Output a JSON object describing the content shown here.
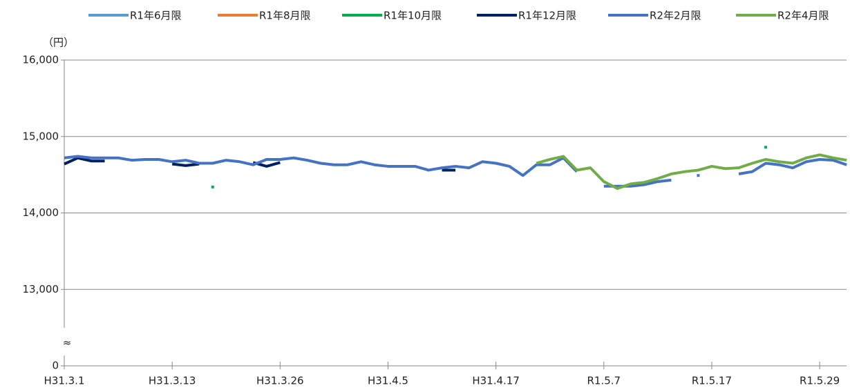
{
  "chart_data": {
    "type": "line",
    "y_label": "（円）",
    "axis_break_label": "≈",
    "categories": [
      "H31.3.1",
      null,
      null,
      null,
      null,
      null,
      null,
      null,
      "H31.3.13",
      null,
      null,
      null,
      null,
      null,
      null,
      null,
      "H31.3.26",
      null,
      null,
      null,
      null,
      null,
      null,
      null,
      "H31.4.5",
      null,
      null,
      null,
      null,
      null,
      null,
      null,
      "H31.4.17",
      null,
      null,
      null,
      null,
      null,
      null,
      null,
      "R1.5.7",
      null,
      null,
      null,
      null,
      null,
      null,
      null,
      "R1.5.17",
      null,
      null,
      null,
      null,
      null,
      null,
      null,
      "R1.5.29",
      null,
      null
    ],
    "ylim": [
      12000,
      16000
    ],
    "axis_break": true,
    "yticks": [
      {
        "value": 0,
        "label": "0"
      },
      {
        "value": 13000,
        "label": "13,000"
      },
      {
        "value": 14000,
        "label": "14,000"
      },
      {
        "value": 15000,
        "label": "15,000"
      },
      {
        "value": 16000,
        "label": "16,000"
      }
    ],
    "grid": true,
    "legend": "top",
    "series": [
      {
        "name": "R1年6月限",
        "color": "#5b9bd5",
        "values": [
          null,
          null,
          null,
          null,
          null,
          null,
          null,
          null,
          null,
          null,
          null,
          null,
          null,
          null,
          null,
          null,
          null,
          null,
          null,
          null,
          null,
          null,
          null,
          null,
          null,
          null,
          null,
          null,
          null,
          null,
          null,
          null,
          null,
          null,
          null,
          null,
          null,
          null,
          null,
          null,
          null,
          null,
          null,
          null,
          null,
          null,
          null,
          null,
          null,
          null,
          null,
          null,
          null,
          null,
          null,
          null,
          null,
          null,
          null
        ]
      },
      {
        "name": "R1年8月限",
        "color": "#ed7d31",
        "values": [
          null,
          null,
          null,
          null,
          null,
          null,
          null,
          null,
          null,
          null,
          null,
          null,
          null,
          null,
          null,
          null,
          null,
          null,
          null,
          null,
          null,
          null,
          null,
          null,
          null,
          null,
          null,
          null,
          null,
          null,
          null,
          null,
          null,
          null,
          null,
          null,
          null,
          null,
          null,
          null,
          null,
          null,
          null,
          null,
          null,
          null,
          null,
          null,
          null,
          null,
          null,
          null,
          null,
          null,
          null,
          null,
          null,
          null,
          null
        ]
      },
      {
        "name": "R1年10月限",
        "color": "#00b050",
        "values": [
          null,
          null,
          null,
          null,
          null,
          null,
          null,
          null,
          null,
          null,
          null,
          14340,
          null,
          null,
          null,
          null,
          null,
          null,
          null,
          null,
          null,
          null,
          null,
          null,
          null,
          null,
          null,
          null,
          null,
          null,
          null,
          null,
          null,
          null,
          null,
          null,
          null,
          null,
          null,
          null,
          null,
          null,
          null,
          null,
          null,
          null,
          null,
          null,
          null,
          null,
          null,
          null,
          14860,
          null,
          null,
          null,
          null,
          null,
          null
        ]
      },
      {
        "name": "R1年12月限",
        "color": "#002060",
        "values": [
          14640,
          14720,
          14680,
          14680,
          null,
          null,
          null,
          null,
          14640,
          14620,
          14640,
          null,
          null,
          null,
          14660,
          14610,
          14660,
          null,
          null,
          null,
          null,
          null,
          null,
          null,
          null,
          null,
          null,
          null,
          14560,
          14560,
          null,
          null,
          null,
          null,
          null,
          null,
          null,
          null,
          null,
          null,
          null,
          null,
          null,
          null,
          null,
          null,
          null,
          null,
          null,
          null,
          null,
          null,
          null,
          null,
          null,
          null,
          null,
          null,
          null
        ]
      },
      {
        "name": "R2年2月限",
        "color": "#4472c4",
        "values": [
          14720,
          14740,
          14720,
          14720,
          14720,
          14690,
          14700,
          14700,
          14670,
          14690,
          14650,
          14650,
          14690,
          14670,
          14630,
          14700,
          14700,
          14720,
          14690,
          14650,
          14630,
          14630,
          14670,
          14630,
          14610,
          14610,
          14610,
          14560,
          14590,
          14610,
          14590,
          14670,
          14650,
          14610,
          14490,
          14630,
          14630,
          14720,
          14540,
          null,
          14350,
          14350,
          14350,
          14370,
          14410,
          14430,
          null,
          14490,
          null,
          null,
          14510,
          14540,
          14650,
          14630,
          14590,
          14670,
          14700,
          14690,
          14630
        ]
      },
      {
        "name": "R2年4月限",
        "color": "#70ad47",
        "values": [
          null,
          null,
          null,
          null,
          null,
          null,
          null,
          null,
          null,
          null,
          null,
          null,
          null,
          null,
          null,
          null,
          null,
          null,
          null,
          null,
          null,
          null,
          null,
          null,
          null,
          null,
          null,
          null,
          null,
          null,
          null,
          null,
          null,
          null,
          null,
          14650,
          14700,
          14740,
          14560,
          14590,
          14410,
          14320,
          14380,
          14400,
          14450,
          14510,
          14540,
          14560,
          14610,
          14580,
          14590,
          14650,
          14700,
          14670,
          14650,
          14720,
          14760,
          14720,
          14690
        ]
      }
    ]
  }
}
